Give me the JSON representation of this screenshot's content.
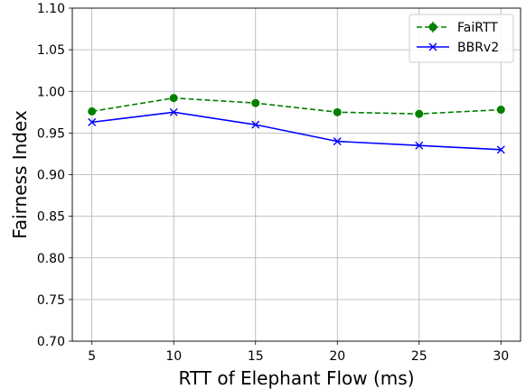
{
  "chart_data": {
    "type": "line",
    "title": "",
    "xlabel": "RTT of Elephant Flow (ms)",
    "ylabel": "Fairness Index",
    "x": [
      5,
      10,
      15,
      20,
      25,
      30
    ],
    "x_ticks": [
      5,
      10,
      15,
      20,
      25,
      30
    ],
    "xlim": [
      3.8,
      31.2
    ],
    "ylim": [
      0.7,
      1.1
    ],
    "y_ticks": [
      "0.70",
      "0.75",
      "0.80",
      "0.85",
      "0.90",
      "0.95",
      "1.00",
      "1.05",
      "1.10"
    ],
    "grid": true,
    "legend_position": "top-right",
    "series": [
      {
        "name": "FaiRTT",
        "values": [
          0.976,
          0.992,
          0.986,
          0.975,
          0.973,
          0.978
        ],
        "color": "#008000",
        "line_style": "dashed",
        "marker": "circle",
        "error_bars": true
      },
      {
        "name": "BBRv2",
        "values": [
          0.963,
          0.975,
          0.96,
          0.94,
          0.935,
          0.93
        ],
        "color": "#0000ff",
        "line_style": "solid",
        "marker": "x"
      }
    ]
  }
}
